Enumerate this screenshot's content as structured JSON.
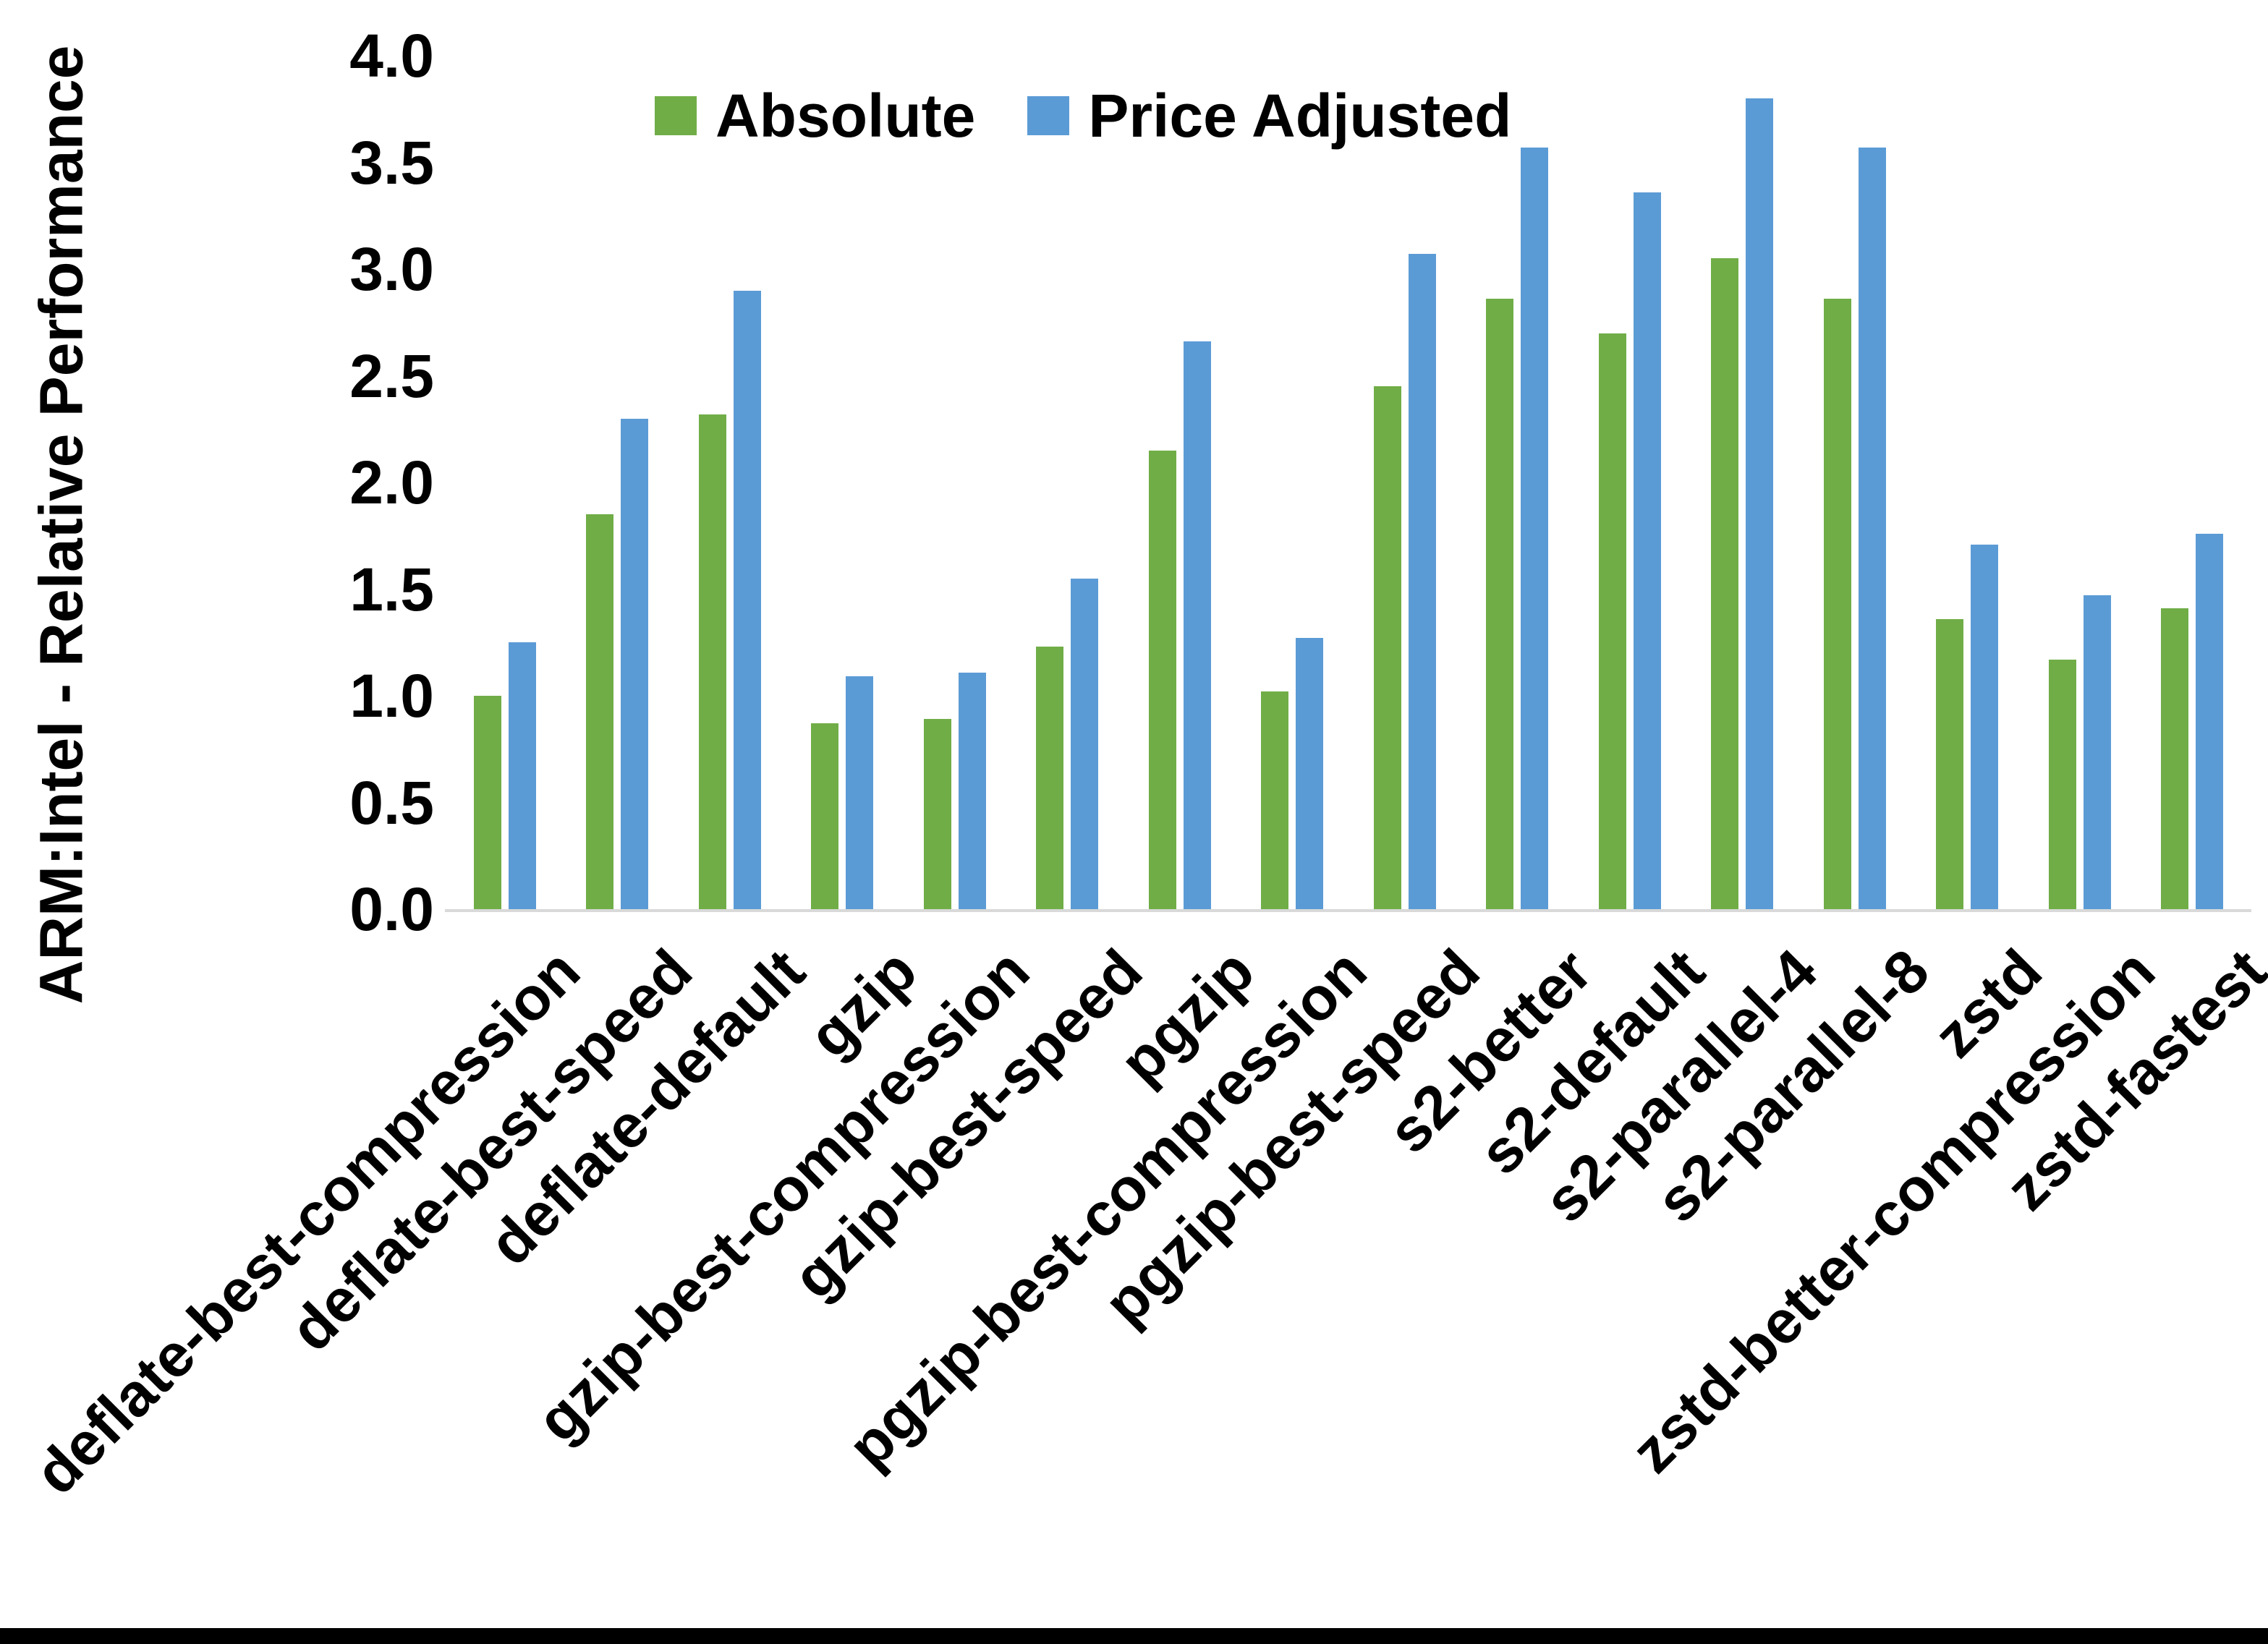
{
  "chart_data": {
    "type": "bar",
    "title": "",
    "xlabel": "",
    "ylabel": "ARM:Intel - Relative Performance",
    "ylim": [
      0.0,
      4.0
    ],
    "ytick_step": 0.5,
    "yticks": [
      "0.0",
      "0.5",
      "1.0",
      "1.5",
      "2.0",
      "2.5",
      "3.0",
      "3.5",
      "4.0"
    ],
    "grid": false,
    "legend_position": "top-center",
    "axis_line_color": "#d9d9d9",
    "categories": [
      "deflate-best-compression",
      "deflate-best-speed",
      "deflate-default",
      "gzip",
      "gzip-best-compression",
      "gzip-best-speed",
      "pgzip",
      "pgzip-best-compression",
      "pgzip-best-speed",
      "s2-better",
      "s2-default",
      "s2-parallel-4",
      "s2-parallel-8",
      "zstd",
      "zstd-better-compression",
      "zstd-fastest"
    ],
    "series": [
      {
        "name": "Absolute",
        "color": "#70AD47",
        "values": [
          1.0,
          1.85,
          2.32,
          0.87,
          0.89,
          1.23,
          2.15,
          1.02,
          2.45,
          2.86,
          2.7,
          3.05,
          2.86,
          1.36,
          1.17,
          1.41
        ]
      },
      {
        "name": "Price Adjusted",
        "color": "#5B9BD5",
        "values": [
          1.25,
          2.3,
          2.9,
          1.09,
          1.11,
          1.55,
          2.66,
          1.27,
          3.07,
          3.57,
          3.36,
          3.8,
          3.57,
          1.71,
          1.47,
          1.76
        ]
      }
    ]
  }
}
